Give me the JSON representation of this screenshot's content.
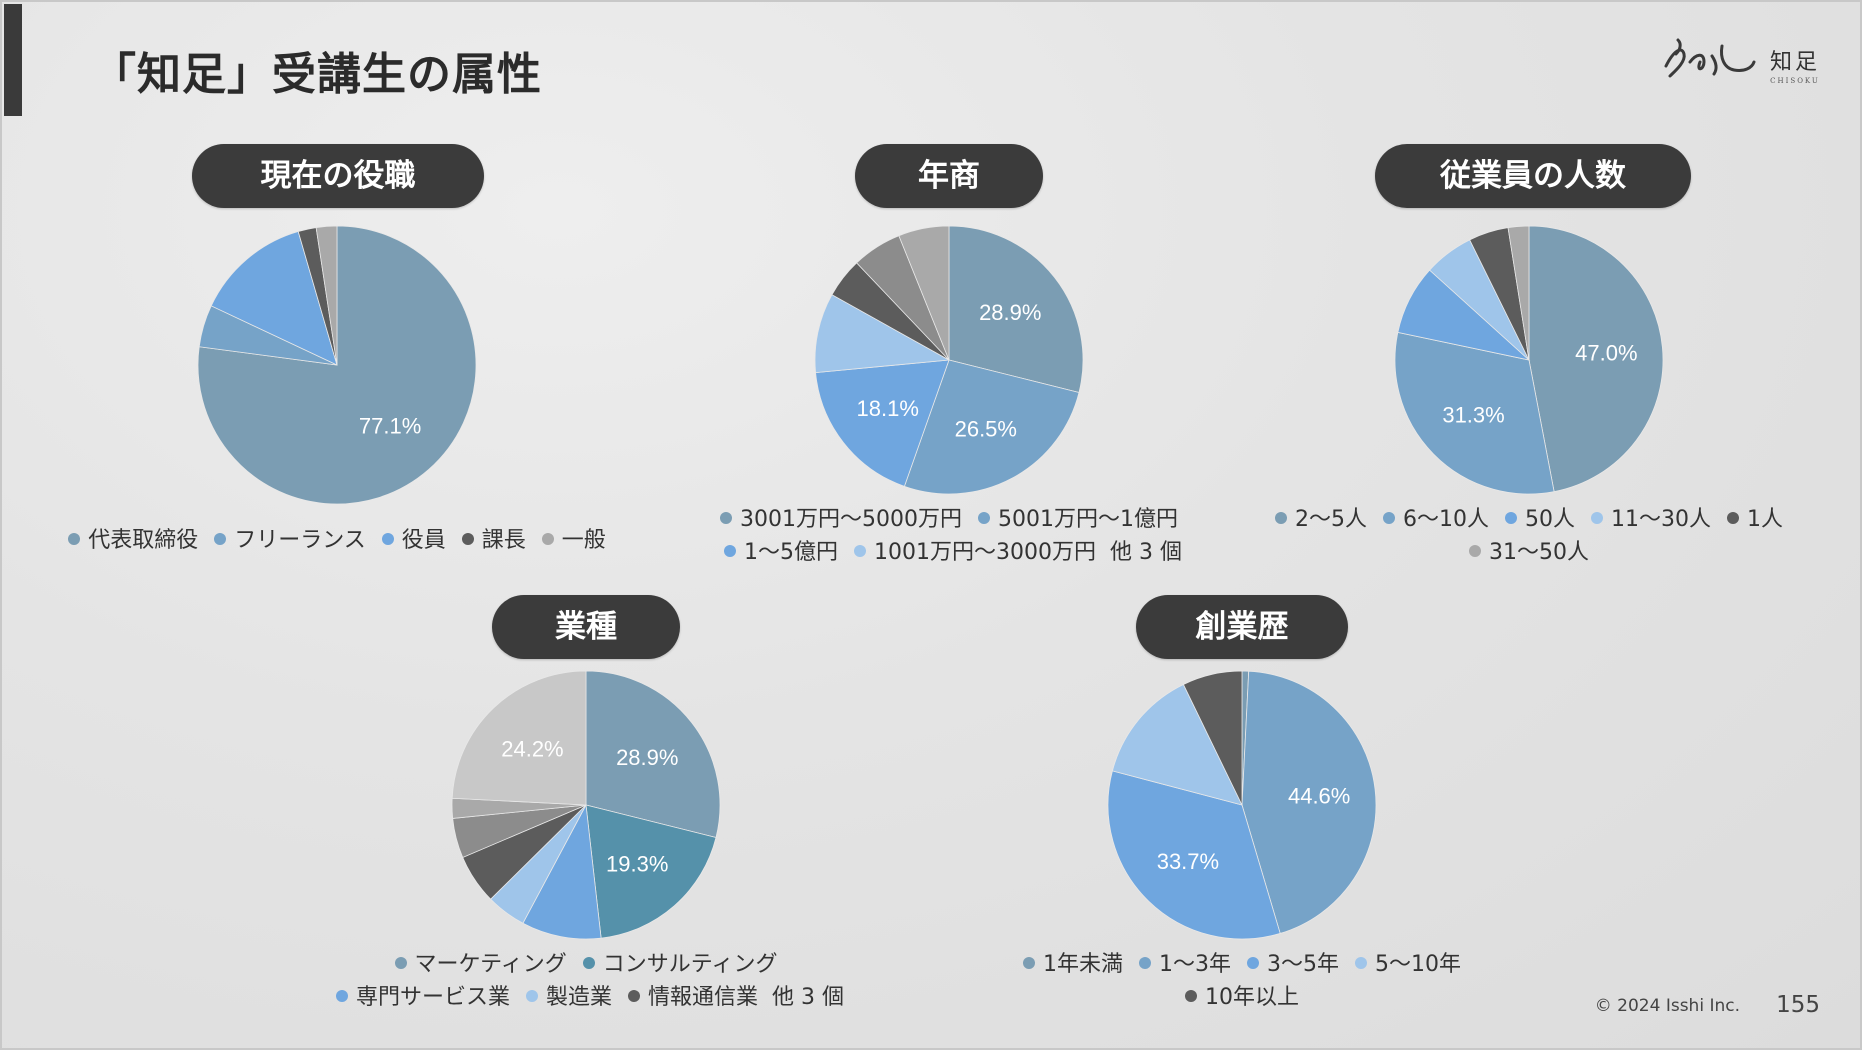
{
  "page": {
    "title": "「知足」受講生の属性",
    "logo_text": "知足",
    "logo_sub": "CHISOKU",
    "copyright": "© 2024 Isshi Inc.",
    "page_number": "155"
  },
  "colors": {
    "c1": "#7b9db3",
    "c2": "#76a3c8",
    "c3": "#6fa6df",
    "c4": "#9fc5ea",
    "c5": "#5c5c5c",
    "c6": "#8c8c8c",
    "c7": "#a9a9a9",
    "c8": "#c8c8c8",
    "teal": "#5591aa"
  },
  "chart_data": [
    {
      "type": "pie",
      "title": "現在の役職",
      "slices": [
        {
          "label": "代表取締役",
          "value": 77.1,
          "display": "77.1%",
          "color": "#7b9db3"
        },
        {
          "label": "フリーランス",
          "value": 4.9,
          "display": "",
          "color": "#76a3c8"
        },
        {
          "label": "役員",
          "value": 13.5,
          "display": "",
          "color": "#6fa6df"
        },
        {
          "label": "課長",
          "value": 2.1,
          "display": "",
          "color": "#5c5c5c"
        },
        {
          "label": "一般",
          "value": 2.4,
          "display": "",
          "color": "#a9a9a9"
        }
      ],
      "legend": [
        [
          "代表取締役",
          "フリーランス",
          "役員",
          "課長",
          "一般"
        ]
      ],
      "more": ""
    },
    {
      "type": "pie",
      "title": "年商",
      "slices": [
        {
          "label": "3001万円～5000万円",
          "value": 28.9,
          "display": "28.9%",
          "color": "#7b9db3"
        },
        {
          "label": "5001万円～1億円",
          "value": 26.5,
          "display": "26.5%",
          "color": "#76a3c8"
        },
        {
          "label": "1～5億円",
          "value": 18.1,
          "display": "18.1%",
          "color": "#6fa6df"
        },
        {
          "label": "1001万円～3000万円",
          "value": 9.6,
          "display": "",
          "color": "#9fc5ea"
        },
        {
          "label": "",
          "value": 4.8,
          "display": "",
          "color": "#5c5c5c"
        },
        {
          "label": "",
          "value": 6.0,
          "display": "",
          "color": "#8c8c8c"
        },
        {
          "label": "",
          "value": 6.1,
          "display": "",
          "color": "#a9a9a9"
        }
      ],
      "legend": [
        [
          "3001万円～5000万円",
          "5001万円～1億円"
        ],
        [
          "1～5億円",
          "1001万円～3000万円"
        ]
      ],
      "more": "他 3 個"
    },
    {
      "type": "pie",
      "title": "従業員の人数",
      "slices": [
        {
          "label": "2～5人",
          "value": 47.0,
          "display": "47.0%",
          "color": "#7b9db3"
        },
        {
          "label": "6～10人",
          "value": 31.3,
          "display": "31.3%",
          "color": "#76a3c8"
        },
        {
          "label": "50人",
          "value": 8.4,
          "display": "",
          "color": "#6fa6df"
        },
        {
          "label": "11～30人",
          "value": 6.0,
          "display": "",
          "color": "#9fc5ea"
        },
        {
          "label": "1人",
          "value": 4.8,
          "display": "",
          "color": "#5c5c5c"
        },
        {
          "label": "31～50人",
          "value": 2.5,
          "display": "",
          "color": "#a9a9a9"
        }
      ],
      "legend": [
        [
          "2～5人",
          "6～10人",
          "50人",
          "11～30人",
          "1人"
        ],
        [
          "31～50人"
        ]
      ],
      "more": ""
    },
    {
      "type": "pie",
      "title": "業種",
      "slices": [
        {
          "label": "マーケティング",
          "value": 28.9,
          "display": "28.9%",
          "color": "#7b9db3"
        },
        {
          "label": "コンサルティング",
          "value": 19.3,
          "display": "19.3%",
          "color": "#5591aa"
        },
        {
          "label": "専門サービス業",
          "value": 9.6,
          "display": "",
          "color": "#6fa6df"
        },
        {
          "label": "製造業",
          "value": 4.8,
          "display": "",
          "color": "#9fc5ea"
        },
        {
          "label": "情報通信業",
          "value": 6.0,
          "display": "",
          "color": "#5c5c5c"
        },
        {
          "label": "",
          "value": 4.8,
          "display": "",
          "color": "#8c8c8c"
        },
        {
          "label": "",
          "value": 2.4,
          "display": "",
          "color": "#a9a9a9"
        },
        {
          "label": "",
          "value": 24.2,
          "display": "24.2%",
          "color": "#c8c8c8"
        }
      ],
      "legend": [
        [
          "マーケティング",
          "コンサルティング"
        ],
        [
          "専門サービス業",
          "製造業",
          "情報通信業"
        ]
      ],
      "more": "他 3 個"
    },
    {
      "type": "pie",
      "title": "創業歴",
      "slices": [
        {
          "label": "1年未満",
          "value": 0.8,
          "display": "",
          "color": "#7b9db3"
        },
        {
          "label": "1～3年",
          "value": 44.6,
          "display": "44.6%",
          "color": "#76a3c8"
        },
        {
          "label": "3～5年",
          "value": 33.7,
          "display": "33.7%",
          "color": "#6fa6df"
        },
        {
          "label": "5～10年",
          "value": 13.7,
          "display": "",
          "color": "#9fc5ea"
        },
        {
          "label": "10年以上",
          "value": 7.2,
          "display": "",
          "color": "#5c5c5c"
        }
      ],
      "legend": [
        [
          "1年未満",
          "1～3年",
          "3～5年",
          "5～10年"
        ],
        [
          "10年以上"
        ]
      ],
      "more": ""
    }
  ]
}
